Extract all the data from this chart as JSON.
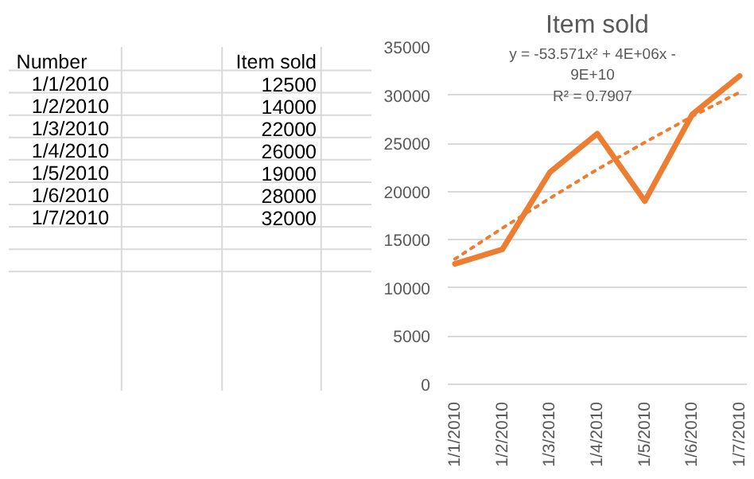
{
  "chart_data": [
    {
      "type": "other",
      "annotations": [
        "Number",
        "Item sold"
      ],
      "categories": [
        "1/1/2010",
        "1/2/2010",
        "1/3/2010",
        "1/4/2010",
        "1/5/2010",
        "1/6/2010",
        "1/7/2010"
      ],
      "values": [
        12500,
        14000,
        22000,
        26000,
        19000,
        28000,
        32000
      ],
      "data_labels": true
    },
    {
      "type": "line",
      "title": "Item sold",
      "categories": [
        "1/1/2010",
        "1/2/2010",
        "1/3/2010",
        "1/4/2010",
        "1/5/2010",
        "1/6/2010",
        "1/7/2010"
      ],
      "series": [
        {
          "color": "#ed7d31",
          "values": [
            12500,
            14000,
            22000,
            26000,
            19000,
            28000,
            32000
          ]
        },
        {
          "line_style": "dotted",
          "color": "#ed7d31",
          "values": [
            13000,
            16200,
            19300,
            22300,
            25100,
            27800,
            30300
          ]
        }
      ],
      "annotations": [
        "y = -53.571x² + 4E+06x - 9E+10",
        "R² = 0.7907"
      ],
      "ylim": [
        0,
        35000
      ],
      "yticks": [
        0,
        5000,
        10000,
        15000,
        20000,
        25000,
        30000,
        35000
      ],
      "grid": "y"
    }
  ]
}
